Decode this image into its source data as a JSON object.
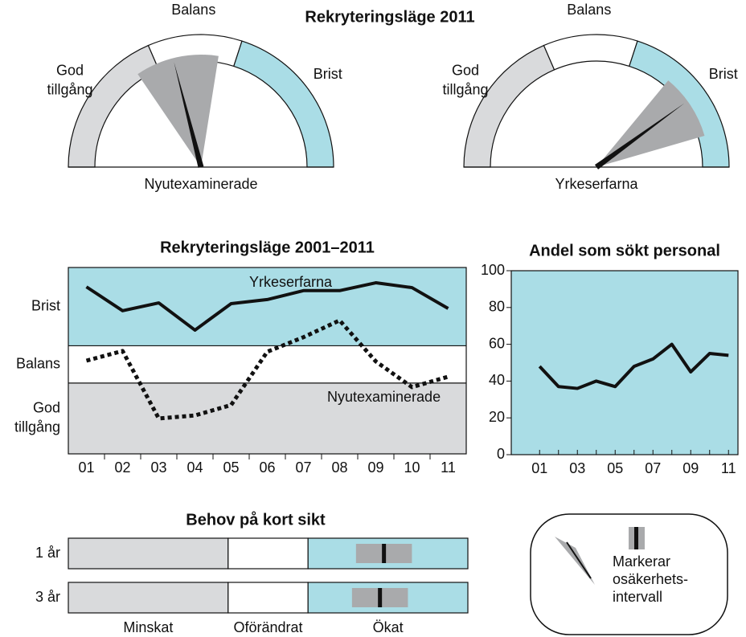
{
  "title": "Rekryteringsläge 2011",
  "chart_data": [
    {
      "type": "gauge",
      "label": "Nyutexaminerade",
      "ylim": [
        0,
        100
      ],
      "zones": [
        {
          "label": [
            "God",
            "tillgång"
          ],
          "from": 0,
          "to": 37,
          "color": "#d9dadc"
        },
        {
          "label": [
            "Balans"
          ],
          "from": 37,
          "to": 60,
          "color": "#ffffff"
        },
        {
          "label": [
            "Brist"
          ],
          "from": 60,
          "to": 100,
          "color": "#aadde6"
        }
      ],
      "value": 42,
      "range": [
        31,
        55
      ],
      "range_color": "#a9aaac",
      "color": "#111111"
    },
    {
      "type": "gauge",
      "label": "Yrkeserfarna",
      "ylim": [
        0,
        100
      ],
      "zones": [
        {
          "label": [
            "God",
            "tillgång"
          ],
          "from": 0,
          "to": 37,
          "color": "#d9dadc"
        },
        {
          "label": [
            "Balans"
          ],
          "from": 37,
          "to": 60,
          "color": "#ffffff"
        },
        {
          "label": [
            "Brist"
          ],
          "from": 60,
          "to": 100,
          "color": "#aadde6"
        }
      ],
      "value": 80,
      "range": [
        72,
        91
      ],
      "range_color": "#a9aaac",
      "color": "#111111"
    },
    {
      "type": "line",
      "title": "Rekryteringsläge 2001–2011",
      "categories": [
        "01",
        "02",
        "03",
        "04",
        "05",
        "06",
        "07",
        "08",
        "09",
        "10",
        "11"
      ],
      "ylim": [
        0,
        5
      ],
      "bands": [
        {
          "label": [
            "God",
            "tillgång"
          ],
          "from": 0,
          "to": 1.9,
          "color": "#d9dadc"
        },
        {
          "label": [
            "Balans"
          ],
          "from": 1.9,
          "to": 2.9,
          "color": "#ffffff"
        },
        {
          "label": [
            "Brist"
          ],
          "from": 2.9,
          "to": 5,
          "color": "#aadde6"
        }
      ],
      "series": [
        {
          "name": "Yrkeserfarna",
          "color": "#111111",
          "dashed": false,
          "values": [
            4.48,
            3.84,
            4.05,
            3.32,
            4.03,
            4.14,
            4.38,
            4.38,
            4.59,
            4.46,
            3.9
          ]
        },
        {
          "name": "Nyutexaminerade",
          "color": "#111111",
          "dashed": true,
          "values": [
            2.5,
            2.76,
            0.95,
            1.03,
            1.31,
            2.74,
            3.13,
            3.58,
            2.48,
            1.79,
            2.07
          ]
        }
      ]
    },
    {
      "type": "line",
      "title": "Andel som sökt personal",
      "background": "#aadde6",
      "categories": [
        "01",
        null,
        "03",
        null,
        "05",
        null,
        "07",
        null,
        "09",
        null,
        "11"
      ],
      "ylim": [
        0,
        100
      ],
      "yticks": [
        0,
        20,
        40,
        60,
        80,
        100
      ],
      "series": [
        {
          "color": "#111111",
          "values": [
            48,
            37,
            36,
            40,
            37,
            48,
            52,
            60,
            45,
            55,
            54
          ]
        }
      ]
    },
    {
      "type": "range",
      "title": "Behov på kort sikt",
      "xlim": [
        0,
        100
      ],
      "zones": [
        {
          "label": "Minskat",
          "from": 0,
          "to": 40,
          "color": "#d9dadc"
        },
        {
          "label": "Oförändrat",
          "from": 40,
          "to": 60,
          "color": "#ffffff"
        },
        {
          "label": "Ökat",
          "from": 60,
          "to": 100,
          "color": "#aadde6"
        }
      ],
      "rows": [
        {
          "label": "1 år",
          "value": 79,
          "range": [
            72,
            86
          ]
        },
        {
          "label": "3 år",
          "value": 78,
          "range": [
            71,
            85
          ]
        }
      ],
      "range_color": "#a9aaac",
      "color": "#111111"
    }
  ],
  "legend": {
    "lines": [
      "Markerar",
      "osäkerhets-",
      "intervall"
    ]
  }
}
